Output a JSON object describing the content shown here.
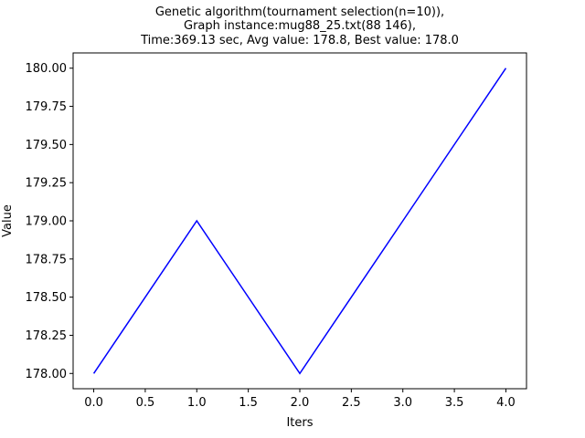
{
  "chart_data": {
    "type": "line",
    "title_lines": [
      "Genetic algorithm(tournament selection(n=10)),",
      "Graph instance:mug88_25.txt(88 146),",
      "Time:369.13 sec, Avg value: 178.8, Best value: 178.0"
    ],
    "xlabel": "Iters",
    "ylabel": "Value",
    "x": [
      0,
      1,
      2,
      3,
      4
    ],
    "series": [
      {
        "values": [
          178.0,
          179.0,
          178.0,
          179.0,
          180.0
        ],
        "color": "#0000ff"
      }
    ],
    "xlim": [
      -0.2,
      4.2
    ],
    "ylim": [
      177.9,
      180.1
    ],
    "xticks": [
      0.0,
      0.5,
      1.0,
      1.5,
      2.0,
      2.5,
      3.0,
      3.5,
      4.0
    ],
    "xtick_labels": [
      "0.0",
      "0.5",
      "1.0",
      "1.5",
      "2.0",
      "2.5",
      "3.0",
      "3.5",
      "4.0"
    ],
    "yticks": [
      178.0,
      178.25,
      178.5,
      178.75,
      179.0,
      179.25,
      179.5,
      179.75,
      180.0
    ],
    "ytick_labels": [
      "178.00",
      "178.25",
      "178.50",
      "178.75",
      "179.00",
      "179.25",
      "179.50",
      "179.75",
      "180.00"
    ],
    "grid": false,
    "legend": "none"
  }
}
